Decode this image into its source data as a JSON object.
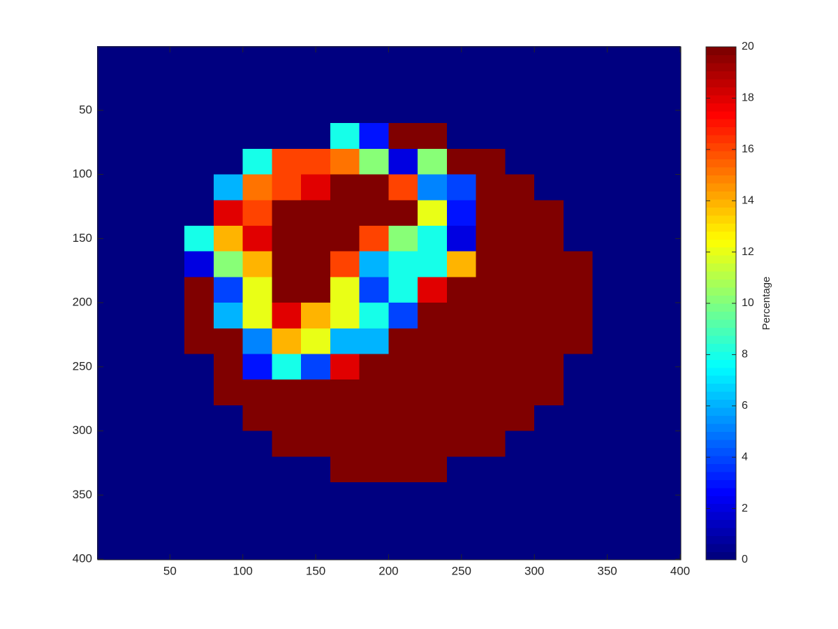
{
  "chart_data": {
    "type": "heatmap",
    "x": [
      10,
      30,
      50,
      70,
      90,
      110,
      130,
      150,
      170,
      190,
      210,
      230,
      250,
      270,
      290,
      310,
      330,
      350,
      370,
      390
    ],
    "y": [
      10,
      30,
      50,
      70,
      90,
      110,
      130,
      150,
      170,
      190,
      210,
      230,
      250,
      270,
      290,
      310,
      330,
      350,
      370,
      390
    ],
    "values": [
      [
        0,
        0,
        0,
        0,
        0,
        0,
        0,
        0,
        0,
        0,
        0,
        0,
        0,
        0,
        0,
        0,
        0,
        0,
        0,
        0
      ],
      [
        0,
        0,
        0,
        0,
        0,
        0,
        0,
        0,
        0,
        0,
        0,
        0,
        0,
        0,
        0,
        0,
        0,
        0,
        0,
        0
      ],
      [
        0,
        0,
        0,
        0,
        0,
        0,
        0,
        0,
        0,
        0,
        0,
        0,
        0,
        0,
        0,
        0,
        0,
        0,
        0,
        0
      ],
      [
        0,
        0,
        0,
        0,
        0,
        0,
        0,
        0,
        8,
        3,
        20,
        20,
        0,
        0,
        0,
        0,
        0,
        0,
        0,
        0
      ],
      [
        0,
        0,
        0,
        0,
        0,
        8,
        16,
        16,
        15,
        10,
        2,
        10,
        20,
        20,
        0,
        0,
        0,
        0,
        0,
        0
      ],
      [
        0,
        0,
        0,
        0,
        6,
        15,
        16,
        18,
        20,
        20,
        16,
        5,
        4,
        20,
        20,
        0,
        0,
        0,
        0,
        0
      ],
      [
        0,
        0,
        0,
        0,
        18,
        16,
        20,
        20,
        20,
        20,
        20,
        12,
        3,
        20,
        20,
        20,
        0,
        0,
        0,
        0
      ],
      [
        0,
        0,
        0,
        8,
        14,
        18,
        20,
        20,
        20,
        16,
        10,
        8,
        2,
        20,
        20,
        20,
        0,
        0,
        0,
        0
      ],
      [
        0,
        0,
        0,
        2,
        10,
        14,
        20,
        20,
        16,
        6,
        8,
        8,
        14,
        20,
        20,
        20,
        20,
        0,
        0,
        0
      ],
      [
        0,
        0,
        0,
        20,
        4,
        12,
        20,
        20,
        12,
        4,
        8,
        18,
        20,
        20,
        20,
        20,
        20,
        0,
        0,
        0
      ],
      [
        0,
        0,
        0,
        20,
        6,
        12,
        18,
        14,
        12,
        8,
        4,
        20,
        20,
        20,
        20,
        20,
        20,
        0,
        0,
        0
      ],
      [
        0,
        0,
        0,
        20,
        20,
        5,
        14,
        12,
        6,
        6,
        20,
        20,
        20,
        20,
        20,
        20,
        20,
        0,
        0,
        0
      ],
      [
        0,
        0,
        0,
        0,
        20,
        3,
        8,
        4,
        18,
        20,
        20,
        20,
        20,
        20,
        20,
        20,
        0,
        0,
        0,
        0
      ],
      [
        0,
        0,
        0,
        0,
        20,
        20,
        20,
        20,
        20,
        20,
        20,
        20,
        20,
        20,
        20,
        20,
        0,
        0,
        0,
        0
      ],
      [
        0,
        0,
        0,
        0,
        0,
        20,
        20,
        20,
        20,
        20,
        20,
        20,
        20,
        20,
        20,
        0,
        0,
        0,
        0,
        0
      ],
      [
        0,
        0,
        0,
        0,
        0,
        0,
        20,
        20,
        20,
        20,
        20,
        20,
        20,
        20,
        0,
        0,
        0,
        0,
        0,
        0
      ],
      [
        0,
        0,
        0,
        0,
        0,
        0,
        0,
        0,
        20,
        20,
        20,
        20,
        0,
        0,
        0,
        0,
        0,
        0,
        0,
        0
      ],
      [
        0,
        0,
        0,
        0,
        0,
        0,
        0,
        0,
        0,
        0,
        0,
        0,
        0,
        0,
        0,
        0,
        0,
        0,
        0,
        0
      ],
      [
        0,
        0,
        0,
        0,
        0,
        0,
        0,
        0,
        0,
        0,
        0,
        0,
        0,
        0,
        0,
        0,
        0,
        0,
        0,
        0
      ],
      [
        0,
        0,
        0,
        0,
        0,
        0,
        0,
        0,
        0,
        0,
        0,
        0,
        0,
        0,
        0,
        0,
        0,
        0,
        0,
        0
      ]
    ],
    "xlim": [
      0.5,
      400.5
    ],
    "xticks": [
      50,
      100,
      150,
      200,
      250,
      300,
      350,
      400
    ],
    "ylim": [
      0.5,
      400.5
    ],
    "yticks": [
      50,
      100,
      150,
      200,
      250,
      300,
      350,
      400
    ],
    "ydir": "reverse",
    "colormap": "jet",
    "clim": [
      0,
      20
    ],
    "colorbar": {
      "label": "Percentage",
      "ticks": [
        0,
        2,
        4,
        6,
        8,
        10,
        12,
        14,
        16,
        18,
        20
      ]
    }
  }
}
